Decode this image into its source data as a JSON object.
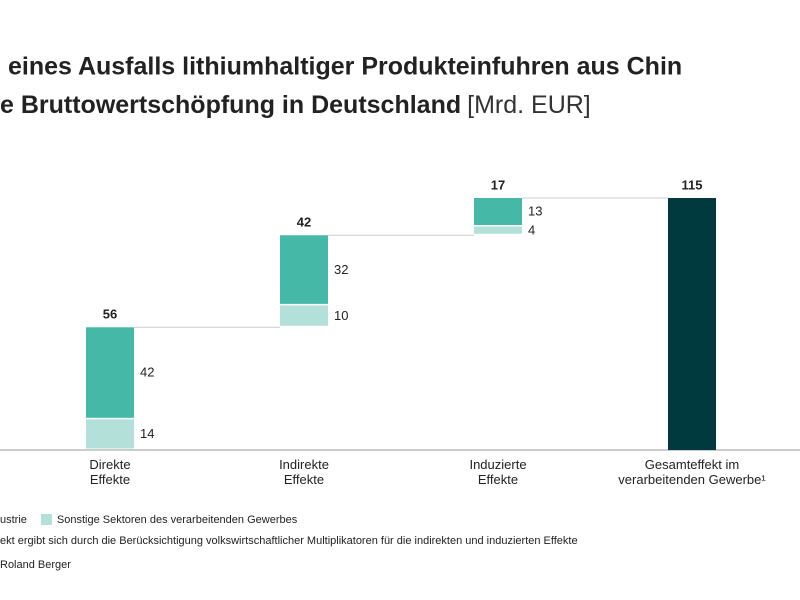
{
  "chart_data": {
    "type": "waterfall",
    "title": "eines Ausfalls lithiumhaltiger Produkteinfuhren aus Chin",
    "subtitle": "e Bruttowertschöpfung in Deutschland",
    "unit": "[Mrd. EUR]",
    "categories": [
      "Direkte\nEffekte",
      "Indirekte\nEffekte",
      "Induzierte\nEffekte",
      "Gesamteffekt im\nverarbeitenden Gewerbe¹"
    ],
    "series": [
      {
        "name": "ustrie",
        "color": "#45b8a8",
        "values": [
          42,
          32,
          13,
          null
        ]
      },
      {
        "name": "Sonstige Sektoren des verarbeitenden Gewerbes",
        "color": "#b3e0d8",
        "values": [
          14,
          10,
          4,
          null
        ]
      }
    ],
    "totals": [
      56,
      42,
      17,
      115
    ],
    "total_color": "#003a3f",
    "footnote": "ekt ergibt sich durch die Berücksichtigung volkswirtschaftlicher Multiplikatoren für die indirekten und induzierten Effekte",
    "source": "Roland Berger"
  }
}
